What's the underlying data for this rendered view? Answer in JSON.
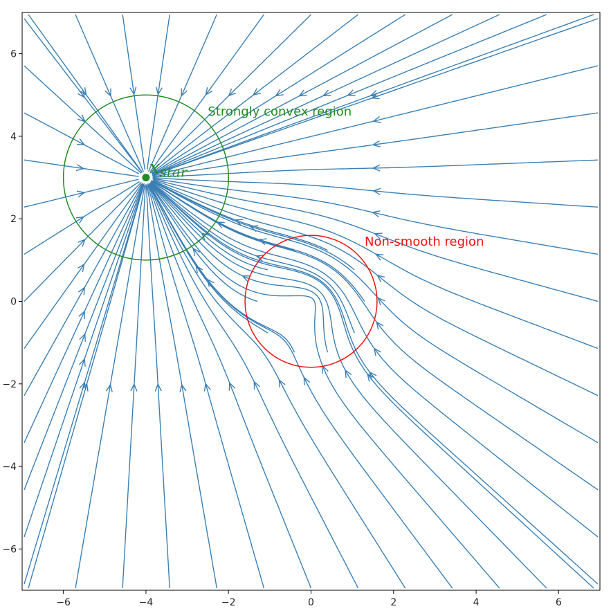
{
  "chart_data": {
    "type": "streamplot",
    "title": "",
    "xlabel": "",
    "ylabel": "",
    "xlim": [
      -7,
      7
    ],
    "ylim": [
      -7,
      7
    ],
    "xticks": [
      -6,
      -4,
      -2,
      0,
      2,
      4,
      6
    ],
    "yticks": [
      -6,
      -4,
      -2,
      0,
      2,
      4,
      6
    ],
    "xtick_labels": [
      "−6",
      "−4",
      "−2",
      "0",
      "2",
      "4",
      "6"
    ],
    "ytick_labels": [
      "−6",
      "−4",
      "−2",
      "0",
      "2",
      "4",
      "6"
    ],
    "grid": false,
    "stream_color": "#3a7fb4",
    "points": [
      {
        "name": "x_star",
        "x": -4,
        "y": 3,
        "color": "#228b22",
        "label_base": "x",
        "label_sub": "star"
      }
    ],
    "regions": [
      {
        "type": "circle",
        "center": [
          -4,
          3
        ],
        "radius": 2,
        "color": "#228b22",
        "label": "Strongly convex region"
      },
      {
        "type": "circle",
        "center": [
          0,
          0
        ],
        "radius": 1.6,
        "color": "#ee1111",
        "label": "Non-smooth region"
      }
    ]
  }
}
